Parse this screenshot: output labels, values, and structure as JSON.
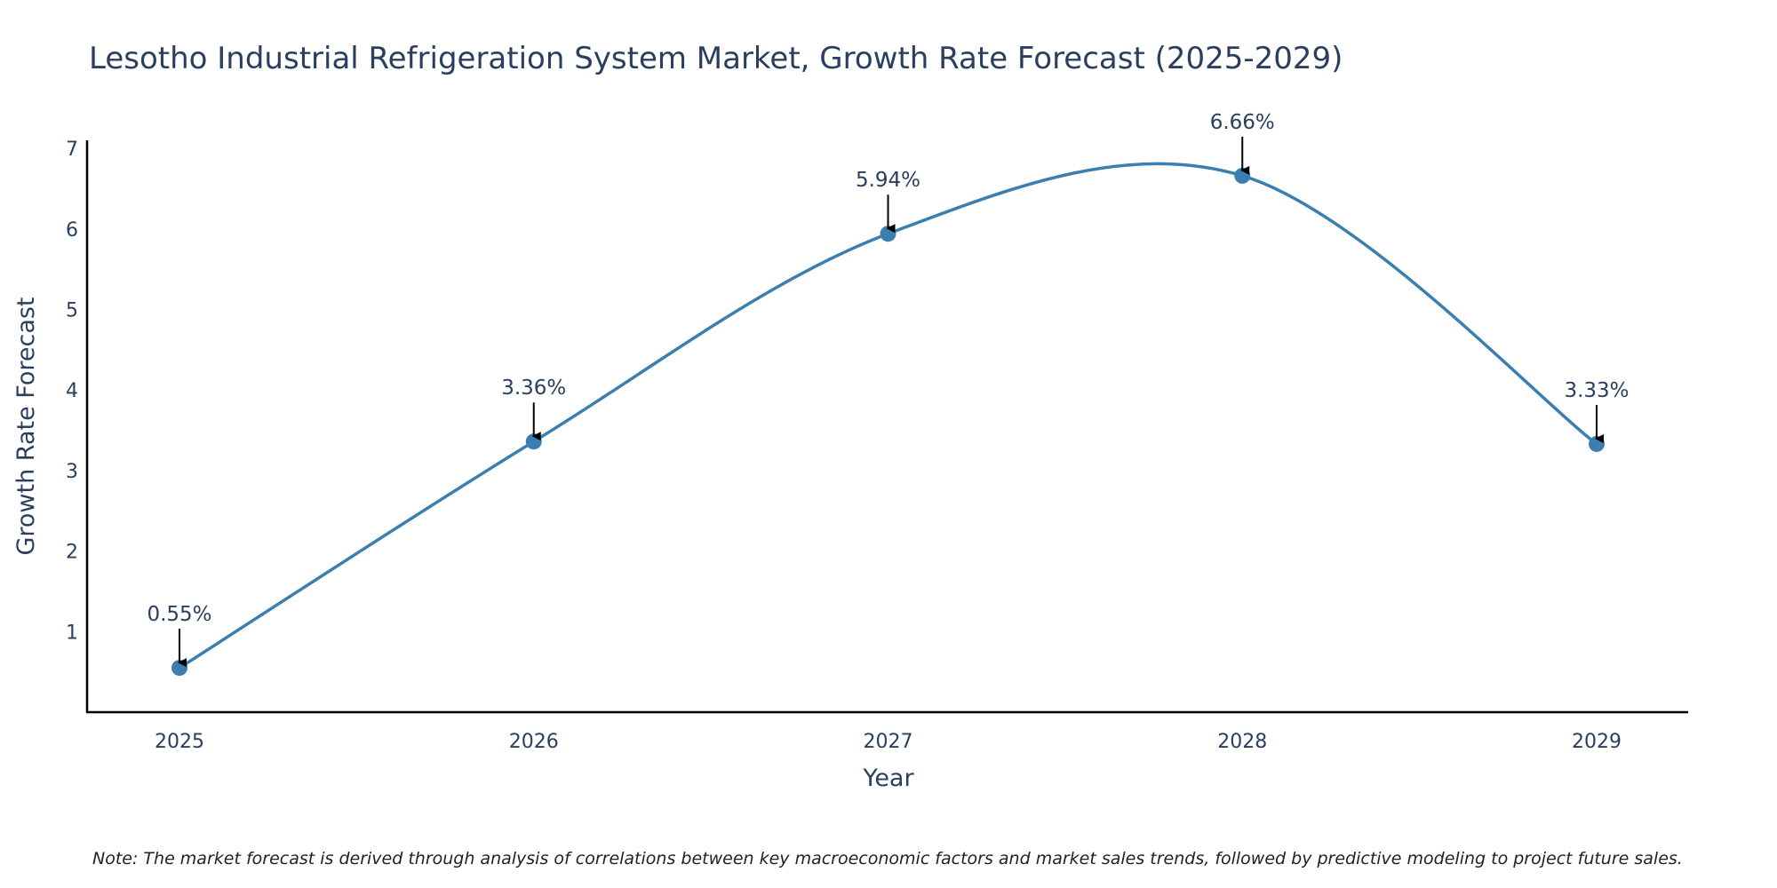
{
  "chart_data": {
    "type": "line",
    "title": "Lesotho Industrial Refrigeration System Market, Growth Rate Forecast (2025-2029)",
    "xlabel": "Year",
    "ylabel": "Growth Rate Forecast",
    "categories": [
      "2025",
      "2026",
      "2027",
      "2028",
      "2029"
    ],
    "values": [
      0.55,
      3.36,
      5.94,
      6.66,
      3.33
    ],
    "data_labels": [
      "0.55%",
      "3.36%",
      "5.94%",
      "6.66%",
      "3.33%"
    ],
    "y_ticks": [
      1,
      2,
      3,
      4,
      5,
      6,
      7
    ],
    "ylim": [
      0,
      7.1
    ],
    "line_shape": "spline",
    "grid": false,
    "legend": "none",
    "line_color": "#3a7fb0",
    "marker_color": "#3a7fb0",
    "arrow_color": "#000000"
  },
  "footnote": "Note: The market forecast is derived through analysis of correlations between key macroeconomic factors and market sales trends, followed by predictive modeling to project future sales."
}
